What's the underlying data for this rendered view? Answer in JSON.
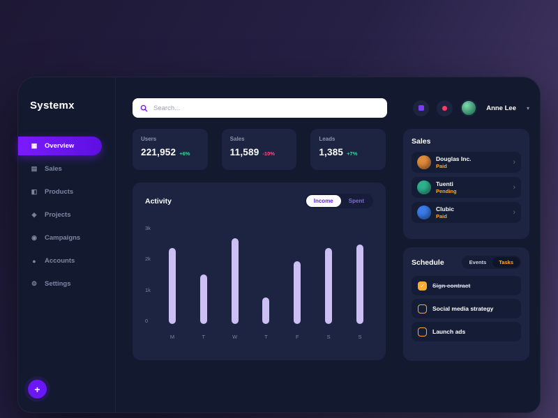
{
  "app": {
    "name": "Systemx"
  },
  "sidebar": {
    "items": [
      {
        "label": "Overview",
        "icon": "grid",
        "active": true
      },
      {
        "label": "Sales",
        "icon": "chart",
        "active": false
      },
      {
        "label": "Products",
        "icon": "box",
        "active": false
      },
      {
        "label": "Projects",
        "icon": "nodes",
        "active": false
      },
      {
        "label": "Campaigns",
        "icon": "megaphone",
        "active": false
      },
      {
        "label": "Accounts",
        "icon": "user",
        "active": false
      },
      {
        "label": "Settings",
        "icon": "gear",
        "active": false
      }
    ],
    "fab_label": "+"
  },
  "topbar": {
    "search_placeholder": "Search...",
    "user_name": "Anne Lee"
  },
  "stats": [
    {
      "label": "Users",
      "value": "221,952",
      "trend": "+6%",
      "trend_dir": "up"
    },
    {
      "label": "Sales",
      "value": "11,589",
      "trend": "-10%",
      "trend_dir": "down"
    },
    {
      "label": "Leads",
      "value": "1,385",
      "trend": "+7%",
      "trend_dir": "up"
    }
  ],
  "activity": {
    "title": "Activity",
    "toggles": [
      {
        "label": "Income",
        "active": true
      },
      {
        "label": "Spent",
        "active": false
      }
    ]
  },
  "chart_data": {
    "type": "bar",
    "title": "Activity",
    "categories": [
      "M",
      "T",
      "W",
      "T",
      "F",
      "S",
      "S"
    ],
    "values": [
      2300,
      1500,
      2600,
      800,
      1900,
      2300,
      2400
    ],
    "xlabel": "",
    "ylabel": "",
    "ylim": [
      0,
      3000
    ],
    "ytick_labels": [
      "3k",
      "2k",
      "1k",
      "0"
    ],
    "grid": false,
    "legend_position": "none",
    "bar_color": "#cbbff3"
  },
  "sales_panel": {
    "title": "Sales",
    "items": [
      {
        "name": "Douglas Inc.",
        "status": "Paid",
        "status_color": "#ffab2d",
        "avatar_color": "#e08a3c"
      },
      {
        "name": "Tuenti",
        "status": "Pending",
        "status_color": "#ffab2d",
        "avatar_color": "#2fb08c"
      },
      {
        "name": "Clubic",
        "status": "Paid",
        "status_color": "#ffab2d",
        "avatar_color": "#3a7be8"
      }
    ]
  },
  "schedule": {
    "title": "Schedule",
    "tabs": [
      {
        "label": "Events",
        "active": false
      },
      {
        "label": "Tasks",
        "active": true
      }
    ],
    "tasks": [
      {
        "label": "Sign contract",
        "done": true
      },
      {
        "label": "Social media strategy",
        "done": false
      },
      {
        "label": "Launch ads",
        "done": false
      }
    ]
  },
  "colors": {
    "accent_purple": "#6b16f5",
    "bar_lavender": "#cbbff3",
    "positive_green": "#3dd598",
    "negative_red": "#ff4d7e",
    "warning_orange": "#ffab2d"
  }
}
